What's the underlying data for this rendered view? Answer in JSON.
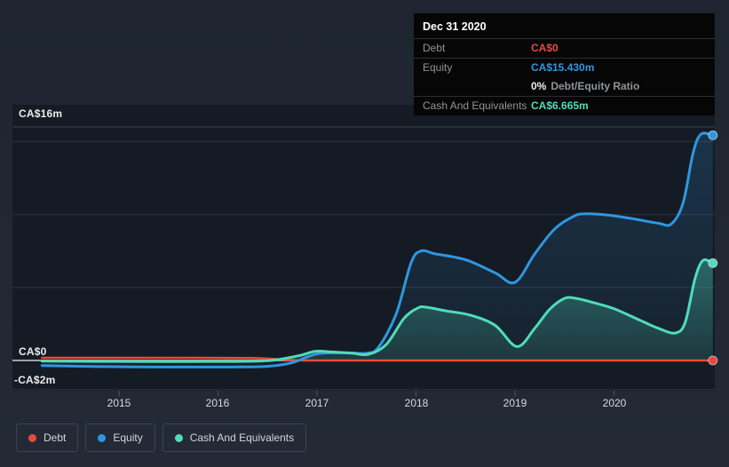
{
  "tooltip": {
    "date": "Dec 31 2020",
    "debt_label": "Debt",
    "debt_value": "CA$0",
    "equity_label": "Equity",
    "equity_value": "CA$15.430m",
    "ratio_value": "0%",
    "ratio_label": "Debt/Equity Ratio",
    "cash_label": "Cash And Equivalents",
    "cash_value": "CA$6.665m"
  },
  "chart_data": {
    "type": "area",
    "currency": "CA$",
    "xlim": [
      2013.92,
      2021.02
    ],
    "ylim": [
      -2.07,
      16
    ],
    "ylabel_unit": "m",
    "y_labels": [
      "CA$16m",
      "CA$0",
      "-CA$2m"
    ],
    "y_label_values": [
      16,
      0,
      -2
    ],
    "gridlines": [
      16,
      15,
      10,
      5,
      0,
      -2
    ],
    "x_ticks": [
      "2015",
      "2016",
      "2017",
      "2018",
      "2019",
      "2020"
    ],
    "x_tick_years": [
      2015,
      2016,
      2017,
      2018,
      2019,
      2020
    ],
    "legend_position": "bottom-left",
    "background_plot": "#151b24",
    "zero_line_color": "#9ba1aa",
    "grid_color": "#2b3440",
    "series": [
      {
        "name": "Debt",
        "color": "#e8493e",
        "final_label": "CA$0",
        "points": [
          [
            2014.22,
            0.18
          ],
          [
            2015,
            0.18
          ],
          [
            2015.8,
            0.18
          ],
          [
            2016.35,
            0.16
          ],
          [
            2016.6,
            0.08
          ],
          [
            2016.8,
            0.01
          ],
          [
            2017,
            0
          ],
          [
            2018,
            0
          ],
          [
            2019,
            0
          ],
          [
            2020,
            0
          ],
          [
            2021,
            0
          ]
        ]
      },
      {
        "name": "Equity",
        "color": "#2f97e0",
        "final_label": "CA$15.430m",
        "points": [
          [
            2014.22,
            -0.35
          ],
          [
            2014.8,
            -0.42
          ],
          [
            2015.5,
            -0.45
          ],
          [
            2016.1,
            -0.45
          ],
          [
            2016.5,
            -0.4
          ],
          [
            2016.75,
            -0.15
          ],
          [
            2017,
            0.45
          ],
          [
            2017.3,
            0.52
          ],
          [
            2017.5,
            0.5
          ],
          [
            2017.62,
            0.9
          ],
          [
            2017.8,
            3.2
          ],
          [
            2017.95,
            6.7
          ],
          [
            2018.05,
            7.5
          ],
          [
            2018.2,
            7.3
          ],
          [
            2018.5,
            6.9
          ],
          [
            2018.8,
            6.0
          ],
          [
            2019,
            5.35
          ],
          [
            2019.2,
            7.3
          ],
          [
            2019.4,
            9.0
          ],
          [
            2019.6,
            9.9
          ],
          [
            2019.72,
            10.05
          ],
          [
            2019.95,
            9.95
          ],
          [
            2020.2,
            9.7
          ],
          [
            2020.45,
            9.4
          ],
          [
            2020.58,
            9.35
          ],
          [
            2020.7,
            10.8
          ],
          [
            2020.8,
            14.2
          ],
          [
            2020.88,
            15.5
          ],
          [
            2021,
            15.43
          ]
        ]
      },
      {
        "name": "Cash And Equivalents",
        "color": "#4fdcba",
        "final_label": "CA$6.665m",
        "points": [
          [
            2014.22,
            -0.05
          ],
          [
            2015,
            -0.07
          ],
          [
            2016,
            -0.07
          ],
          [
            2016.5,
            -0.02
          ],
          [
            2016.8,
            0.3
          ],
          [
            2016.98,
            0.62
          ],
          [
            2017.15,
            0.58
          ],
          [
            2017.35,
            0.5
          ],
          [
            2017.52,
            0.42
          ],
          [
            2017.7,
            1.1
          ],
          [
            2017.88,
            2.9
          ],
          [
            2018.02,
            3.6
          ],
          [
            2018.1,
            3.65
          ],
          [
            2018.3,
            3.4
          ],
          [
            2018.55,
            3.1
          ],
          [
            2018.8,
            2.4
          ],
          [
            2019.02,
            0.95
          ],
          [
            2019.2,
            2.2
          ],
          [
            2019.35,
            3.5
          ],
          [
            2019.5,
            4.25
          ],
          [
            2019.62,
            4.25
          ],
          [
            2019.8,
            3.95
          ],
          [
            2020,
            3.55
          ],
          [
            2020.25,
            2.8
          ],
          [
            2020.45,
            2.2
          ],
          [
            2020.62,
            1.88
          ],
          [
            2020.72,
            2.6
          ],
          [
            2020.82,
            5.6
          ],
          [
            2020.9,
            6.85
          ],
          [
            2021,
            6.665
          ]
        ]
      }
    ]
  }
}
